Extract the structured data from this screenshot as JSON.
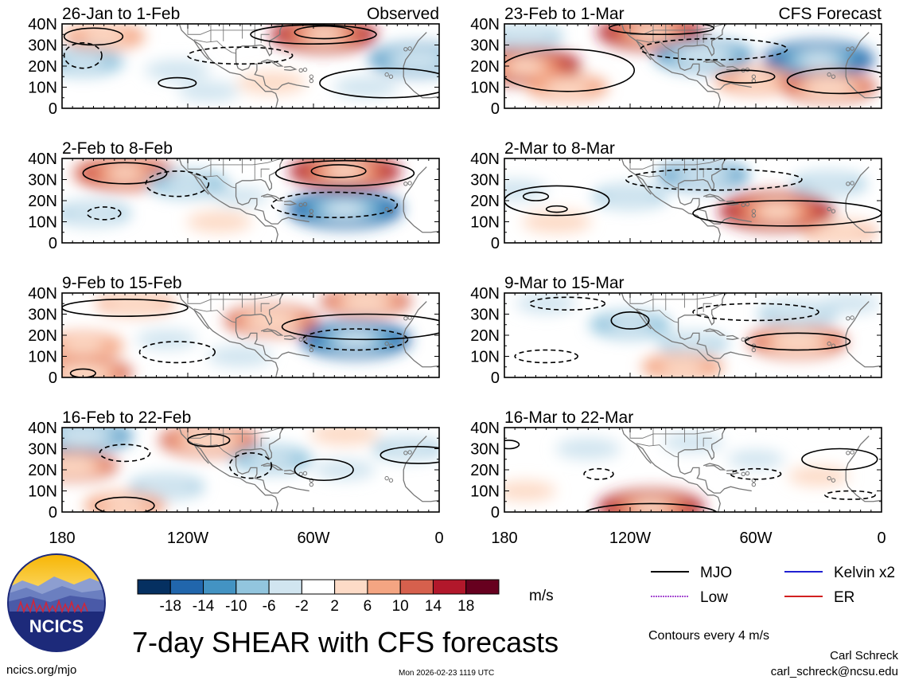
{
  "title": "7-day SHEAR with CFS forecasts",
  "logo_text": "NCICS",
  "website": "ncics.org/mjo",
  "timestamp": "Mon 2026-02-23 1119 UTC",
  "author": "Carl Schreck",
  "email": "carl_schreck@ncsu.edu",
  "contour_note": "Contours every 4 m/s",
  "colorbar_units": "m/s",
  "column_headers": {
    "left": "Observed",
    "right": "CFS Forecast"
  },
  "colors": {
    "levels": [
      "#053061",
      "#2166ac",
      "#4393c3",
      "#92c5de",
      "#d1e5f0",
      "#ffffff",
      "#fddbc7",
      "#f4a582",
      "#d6604d",
      "#b2182b",
      "#67001f"
    ],
    "land": "#777777"
  },
  "legend": [
    {
      "label": "MJO",
      "color": "#000000"
    },
    {
      "label": "Kelvin x2",
      "color": "#0000cc"
    },
    {
      "label": "Low",
      "color": "#9933cc"
    },
    {
      "label": "ER",
      "color": "#cc0000"
    }
  ],
  "chart_data": {
    "type": "heatmap",
    "variable": "7-day vertical wind shear anomaly",
    "units": "m/s",
    "colorbar_ticks": [
      "-18",
      "-14",
      "-10",
      "-6",
      "-2",
      "2",
      "6",
      "10",
      "14",
      "18"
    ],
    "x_range": [
      -180,
      0
    ],
    "y_range": [
      0,
      40
    ],
    "x_ticks": [
      "180",
      "120W",
      "60W",
      "0"
    ],
    "y_ticks": [
      "40N",
      "30N",
      "20N",
      "10N",
      "0"
    ],
    "panels": [
      {
        "label": "26-Jan to 1-Feb",
        "col": 0,
        "row": 0,
        "blobs": [
          {
            "lon": -55,
            "lat": 35,
            "v": 15
          },
          {
            "lon": -160,
            "lat": 34,
            "v": 9
          },
          {
            "lon": -10,
            "lat": 23,
            "v": -13
          },
          {
            "lon": -170,
            "lat": 22,
            "v": -9
          },
          {
            "lon": -125,
            "lat": 18,
            "v": -5
          },
          {
            "lon": -80,
            "lat": 12,
            "v": 6
          },
          {
            "lon": -110,
            "lat": 8,
            "v": -4
          },
          {
            "lon": -35,
            "lat": 10,
            "v": -5
          }
        ],
        "contours": [
          {
            "lon": -60,
            "lat": 35,
            "rx": 30,
            "ry": 4.5,
            "dash": false
          },
          {
            "lon": -55,
            "lat": 36,
            "rx": 14,
            "ry": 3,
            "dash": false
          },
          {
            "lon": -165,
            "lat": 34,
            "rx": 14,
            "ry": 4,
            "dash": false
          },
          {
            "lon": -125,
            "lat": 12,
            "rx": 9,
            "ry": 2.5,
            "dash": false
          },
          {
            "lon": -25,
            "lat": 12,
            "rx": 32,
            "ry": 7,
            "dash": false
          },
          {
            "lon": -170,
            "lat": 25,
            "rx": 9,
            "ry": 6,
            "dash": true
          },
          {
            "lon": -95,
            "lat": 25,
            "rx": 25,
            "ry": 4,
            "dash": true
          }
        ]
      },
      {
        "label": "2-Feb to 8-Feb",
        "col": 0,
        "row": 1,
        "blobs": [
          {
            "lon": -45,
            "lat": 34,
            "v": 16
          },
          {
            "lon": -150,
            "lat": 33,
            "v": 14
          },
          {
            "lon": -45,
            "lat": 16,
            "v": -17
          },
          {
            "lon": -120,
            "lat": 28,
            "v": -9
          },
          {
            "lon": -165,
            "lat": 14,
            "v": -7
          },
          {
            "lon": -95,
            "lat": 22,
            "v": -3
          },
          {
            "lon": -105,
            "lat": 10,
            "v": 5
          }
        ],
        "contours": [
          {
            "lon": -45,
            "lat": 33,
            "rx": 33,
            "ry": 6,
            "dash": false
          },
          {
            "lon": -48,
            "lat": 34,
            "rx": 13,
            "ry": 3,
            "dash": false
          },
          {
            "lon": -150,
            "lat": 33,
            "rx": 20,
            "ry": 5,
            "dash": false
          },
          {
            "lon": -50,
            "lat": 18,
            "rx": 30,
            "ry": 6,
            "dash": true
          },
          {
            "lon": -160,
            "lat": 14,
            "rx": 8,
            "ry": 3,
            "dash": true
          },
          {
            "lon": -125,
            "lat": 28,
            "rx": 15,
            "ry": 6,
            "dash": true
          }
        ]
      },
      {
        "label": "9-Feb to 15-Feb",
        "col": 0,
        "row": 2,
        "blobs": [
          {
            "lon": -40,
            "lat": 18,
            "v": -16
          },
          {
            "lon": -35,
            "lat": 36,
            "v": 11
          },
          {
            "lon": -145,
            "lat": 35,
            "v": 8
          },
          {
            "lon": -80,
            "lat": 27,
            "v": 12
          },
          {
            "lon": -170,
            "lat": 15,
            "v": 9
          },
          {
            "lon": -170,
            "lat": 2,
            "v": 13
          },
          {
            "lon": -130,
            "lat": 18,
            "v": -4
          },
          {
            "lon": -95,
            "lat": 10,
            "v": -5
          }
        ],
        "contours": [
          {
            "lon": -35,
            "lat": 24,
            "rx": 40,
            "ry": 6,
            "dash": false
          },
          {
            "lon": -150,
            "lat": 33,
            "rx": 30,
            "ry": 4,
            "dash": false
          },
          {
            "lon": -40,
            "lat": 18,
            "rx": 25,
            "ry": 5,
            "dash": true
          },
          {
            "lon": -125,
            "lat": 12,
            "rx": 18,
            "ry": 5,
            "dash": true
          },
          {
            "lon": -170,
            "lat": 2,
            "rx": 6,
            "ry": 2,
            "dash": false
          }
        ]
      },
      {
        "label": "16-Feb to 22-Feb",
        "col": 0,
        "row": 3,
        "blobs": [
          {
            "lon": -170,
            "lat": 36,
            "v": -13
          },
          {
            "lon": -110,
            "lat": 34,
            "v": 13
          },
          {
            "lon": -175,
            "lat": 22,
            "v": 11
          },
          {
            "lon": -80,
            "lat": 25,
            "v": -9
          },
          {
            "lon": -130,
            "lat": 12,
            "v": -7
          },
          {
            "lon": -150,
            "lat": 3,
            "v": 9
          },
          {
            "lon": -45,
            "lat": 20,
            "v": -4
          },
          {
            "lon": -15,
            "lat": 30,
            "v": -6
          },
          {
            "lon": -45,
            "lat": 37,
            "v": 6
          }
        ],
        "contours": [
          {
            "lon": -150,
            "lat": 3,
            "rx": 14,
            "ry": 4,
            "dash": false
          },
          {
            "lon": -55,
            "lat": 20,
            "rx": 14,
            "ry": 5,
            "dash": false
          },
          {
            "lon": -10,
            "lat": 27,
            "rx": 18,
            "ry": 4,
            "dash": false
          },
          {
            "lon": -110,
            "lat": 34,
            "rx": 10,
            "ry": 3,
            "dash": false
          },
          {
            "lon": -150,
            "lat": 28,
            "rx": 12,
            "ry": 4,
            "dash": true
          },
          {
            "lon": -90,
            "lat": 22,
            "rx": 10,
            "ry": 6,
            "dash": true
          }
        ]
      },
      {
        "label": "23-Feb to 1-Mar",
        "col": 1,
        "row": 0,
        "blobs": [
          {
            "lon": -110,
            "lat": 36,
            "v": 15
          },
          {
            "lon": -170,
            "lat": 20,
            "v": 16
          },
          {
            "lon": -85,
            "lat": 25,
            "v": -13
          },
          {
            "lon": -30,
            "lat": 23,
            "v": -16
          },
          {
            "lon": -60,
            "lat": 13,
            "v": 9
          },
          {
            "lon": -25,
            "lat": 10,
            "v": 12
          },
          {
            "lon": -150,
            "lat": 10,
            "v": 9
          },
          {
            "lon": -170,
            "lat": 34,
            "v": -7
          }
        ],
        "contours": [
          {
            "lon": -150,
            "lat": 18,
            "rx": 32,
            "ry": 10,
            "dash": false
          },
          {
            "lon": -20,
            "lat": 13,
            "rx": 25,
            "ry": 6,
            "dash": false
          },
          {
            "lon": -65,
            "lat": 15,
            "rx": 14,
            "ry": 3,
            "dash": false
          },
          {
            "lon": -80,
            "lat": 28,
            "rx": 35,
            "ry": 5,
            "dash": true
          },
          {
            "lon": -105,
            "lat": 38,
            "rx": 25,
            "ry": 3,
            "dash": false
          }
        ]
      },
      {
        "label": "2-Mar to 8-Mar",
        "col": 1,
        "row": 1,
        "blobs": [
          {
            "lon": -50,
            "lat": 15,
            "v": 17
          },
          {
            "lon": -85,
            "lat": 32,
            "v": -11
          },
          {
            "lon": -120,
            "lat": 22,
            "v": -7
          },
          {
            "lon": -25,
            "lat": 28,
            "v": -7
          },
          {
            "lon": -175,
            "lat": 25,
            "v": -5
          },
          {
            "lon": -155,
            "lat": 10,
            "v": 6
          },
          {
            "lon": -20,
            "lat": 5,
            "v": 7
          }
        ],
        "contours": [
          {
            "lon": -45,
            "lat": 14,
            "rx": 45,
            "ry": 6,
            "dash": false
          },
          {
            "lon": -155,
            "lat": 20,
            "rx": 25,
            "ry": 7,
            "dash": false
          },
          {
            "lon": -165,
            "lat": 22,
            "rx": 6,
            "ry": 2,
            "dash": false
          },
          {
            "lon": -155,
            "lat": 16,
            "rx": 5,
            "ry": 1.5,
            "dash": false
          },
          {
            "lon": -80,
            "lat": 30,
            "rx": 42,
            "ry": 5,
            "dash": true
          }
        ]
      },
      {
        "label": "9-Mar to 15-Mar",
        "col": 1,
        "row": 2,
        "blobs": [
          {
            "lon": -40,
            "lat": 17,
            "v": 13
          },
          {
            "lon": -120,
            "lat": 25,
            "v": -9
          },
          {
            "lon": -40,
            "lat": 30,
            "v": -8
          },
          {
            "lon": -90,
            "lat": 16,
            "v": -6
          },
          {
            "lon": -95,
            "lat": 5,
            "v": 9
          },
          {
            "lon": -160,
            "lat": 35,
            "v": -4
          },
          {
            "lon": -15,
            "lat": 35,
            "v": -4
          }
        ],
        "contours": [
          {
            "lon": -40,
            "lat": 17,
            "rx": 25,
            "ry": 4,
            "dash": false
          },
          {
            "lon": -120,
            "lat": 27,
            "rx": 9,
            "ry": 4,
            "dash": false
          },
          {
            "lon": -150,
            "lat": 35,
            "rx": 18,
            "ry": 3,
            "dash": true
          },
          {
            "lon": -60,
            "lat": 31,
            "rx": 30,
            "ry": 4,
            "dash": true
          },
          {
            "lon": -160,
            "lat": 10,
            "rx": 15,
            "ry": 3,
            "dash": true
          }
        ]
      },
      {
        "label": "16-Mar to 22-Mar",
        "col": 1,
        "row": 3,
        "blobs": [
          {
            "lon": -110,
            "lat": 2,
            "v": 15
          },
          {
            "lon": -140,
            "lat": 30,
            "v": -5
          },
          {
            "lon": -90,
            "lat": 33,
            "v": -4
          },
          {
            "lon": -30,
            "lat": 17,
            "v": 4
          },
          {
            "lon": -60,
            "lat": 25,
            "v": -3
          },
          {
            "lon": -170,
            "lat": 10,
            "v": 4
          }
        ],
        "contours": [
          {
            "lon": -110,
            "lat": -1,
            "rx": 32,
            "ry": 5,
            "dash": false
          },
          {
            "lon": -20,
            "lat": 25,
            "rx": 18,
            "ry": 5,
            "dash": false
          },
          {
            "lon": -178,
            "lat": 32,
            "rx": 5,
            "ry": 2,
            "dash": false
          },
          {
            "lon": -135,
            "lat": 18,
            "rx": 7,
            "ry": 2.5,
            "dash": true
          },
          {
            "lon": -60,
            "lat": 18,
            "rx": 12,
            "ry": 2.5,
            "dash": true
          },
          {
            "lon": -15,
            "lat": 8,
            "rx": 12,
            "ry": 2,
            "dash": true
          }
        ]
      }
    ]
  }
}
